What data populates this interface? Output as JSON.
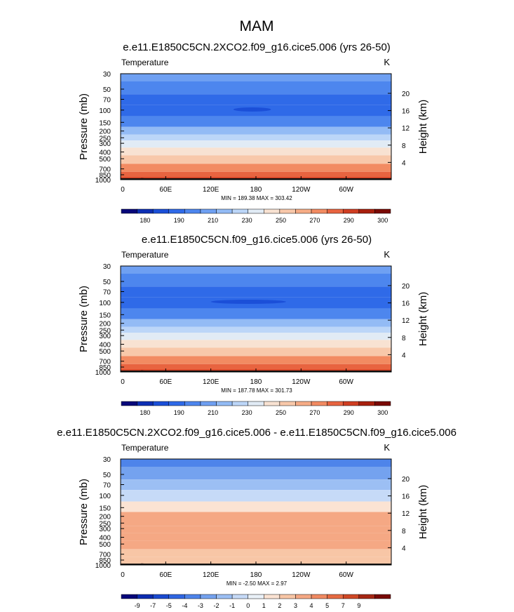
{
  "figure": {
    "title": "MAM"
  },
  "colors": {
    "temperature_palette": [
      "#08087a",
      "#0d2fb4",
      "#1b4fd8",
      "#2f6ae8",
      "#4d86ee",
      "#6fa0f2",
      "#93bbf5",
      "#bcd6f8",
      "#e1ebf5",
      "#f8e2d2",
      "#f8c8aa",
      "#f6ac86",
      "#f28b62",
      "#e86440",
      "#d03e22",
      "#a8200e",
      "#7a0a04"
    ],
    "difference_palette": [
      "#06067a",
      "#0c2cb0",
      "#1a4ad0",
      "#2f66e2",
      "#4e84ea",
      "#74a2ef",
      "#9cbff4",
      "#c6daf7",
      "#eaf1f8",
      "#fbe3d3",
      "#f8c6a6",
      "#f5a884",
      "#f08a62",
      "#e66a42",
      "#cf4826",
      "#a62714",
      "#780a05"
    ]
  },
  "chart_data": [
    {
      "type": "heatmap",
      "title": "e.e11.E1850C5CN.2XCO2.f09_g16.cice5.006 (yrs 26-50)",
      "left_label": "Temperature",
      "right_label": "K",
      "ylabel": "Pressure (mb)",
      "ylabel_right": "Height (km)",
      "xticks": [
        "0",
        "60E",
        "120E",
        "180",
        "120W",
        "60W"
      ],
      "xtick_values": [
        0,
        60,
        120,
        180,
        240,
        300
      ],
      "xlim": [
        0,
        360
      ],
      "yticks": [
        "30",
        "50",
        "70",
        "100",
        "150",
        "200",
        "250",
        "300",
        "400",
        "500",
        "700",
        "850",
        "1000"
      ],
      "ytick_values": [
        30,
        50,
        70,
        100,
        150,
        200,
        250,
        300,
        400,
        500,
        700,
        850,
        1000
      ],
      "ylim": [
        1000,
        30
      ],
      "y_scale": "log",
      "height_ticks": [
        "20",
        "16",
        "12",
        "8",
        "4"
      ],
      "height_tick_values": [
        20,
        16,
        12,
        8,
        4
      ],
      "stats": "MIN = 189.38  MAX = 303.42",
      "min": 189.38,
      "max": 303.42,
      "colorbar_labels": [
        "180",
        "190",
        "210",
        "230",
        "250",
        "270",
        "290",
        "300"
      ],
      "colorbar_levels": [
        175,
        180,
        185,
        190,
        200,
        210,
        220,
        230,
        240,
        250,
        260,
        270,
        280,
        290,
        295,
        300
      ],
      "profile_pressure": [
        30,
        50,
        70,
        100,
        150,
        200,
        250,
        300,
        400,
        500,
        700,
        850,
        1000
      ],
      "profile_color_index": [
        5,
        4,
        3,
        3,
        4,
        6,
        7,
        8,
        9,
        10,
        12,
        13,
        14
      ],
      "min_blob": {
        "lon_start": 150,
        "lon_end": 200,
        "pressure": 98
      },
      "topography": [
        {
          "lon": 5,
          "p": 1000
        },
        {
          "lon": 18,
          "p": 985
        },
        {
          "lon": 28,
          "p": 950
        },
        {
          "lon": 35,
          "p": 960
        },
        {
          "lon": 42,
          "p": 1000
        }
      ]
    },
    {
      "type": "heatmap",
      "title": "e.e11.E1850C5CN.f09_g16.cice5.006 (yrs 26-50)",
      "left_label": "Temperature",
      "right_label": "K",
      "ylabel": "Pressure (mb)",
      "ylabel_right": "Height (km)",
      "xticks": [
        "0",
        "60E",
        "120E",
        "180",
        "120W",
        "60W"
      ],
      "xtick_values": [
        0,
        60,
        120,
        180,
        240,
        300
      ],
      "xlim": [
        0,
        360
      ],
      "yticks": [
        "30",
        "50",
        "70",
        "100",
        "150",
        "200",
        "250",
        "300",
        "400",
        "500",
        "700",
        "850",
        "1000"
      ],
      "ytick_values": [
        30,
        50,
        70,
        100,
        150,
        200,
        250,
        300,
        400,
        500,
        700,
        850,
        1000
      ],
      "ylim": [
        1000,
        30
      ],
      "y_scale": "log",
      "height_ticks": [
        "20",
        "16",
        "12",
        "8",
        "4"
      ],
      "height_tick_values": [
        20,
        16,
        12,
        8,
        4
      ],
      "stats": "MIN = 187.78  MAX = 301.73",
      "min": 187.78,
      "max": 301.73,
      "colorbar_labels": [
        "180",
        "190",
        "210",
        "230",
        "250",
        "270",
        "290",
        "300"
      ],
      "colorbar_levels": [
        175,
        180,
        185,
        190,
        200,
        210,
        220,
        230,
        240,
        250,
        260,
        270,
        280,
        290,
        295,
        300
      ],
      "profile_pressure": [
        30,
        50,
        70,
        100,
        150,
        200,
        250,
        300,
        400,
        500,
        700,
        850,
        1000
      ],
      "profile_color_index": [
        5,
        4,
        3,
        3,
        4,
        6,
        7,
        8,
        9,
        10,
        12,
        13,
        14
      ],
      "min_blob": {
        "lon_start": 120,
        "lon_end": 220,
        "pressure": 98
      },
      "topography": [
        {
          "lon": 5,
          "p": 1000
        },
        {
          "lon": 18,
          "p": 985
        },
        {
          "lon": 28,
          "p": 950
        },
        {
          "lon": 35,
          "p": 960
        },
        {
          "lon": 42,
          "p": 1000
        }
      ]
    },
    {
      "type": "heatmap",
      "title": "e.e11.E1850C5CN.2XCO2.f09_g16.cice5.006 - e.e11.E1850C5CN.f09_g16.cice5.006",
      "left_label": "Temperature",
      "right_label": "K",
      "ylabel": "Pressure (mb)",
      "ylabel_right": "Height (km)",
      "xticks": [
        "0",
        "60E",
        "120E",
        "180",
        "120W",
        "60W"
      ],
      "xtick_values": [
        0,
        60,
        120,
        180,
        240,
        300
      ],
      "xlim": [
        0,
        360
      ],
      "yticks": [
        "30",
        "50",
        "70",
        "100",
        "150",
        "200",
        "250",
        "300",
        "400",
        "500",
        "700",
        "850",
        "1000"
      ],
      "ytick_values": [
        30,
        50,
        70,
        100,
        150,
        200,
        250,
        300,
        400,
        500,
        700,
        850,
        1000
      ],
      "ylim": [
        1000,
        30
      ],
      "y_scale": "log",
      "height_ticks": [
        "20",
        "16",
        "12",
        "8",
        "4"
      ],
      "height_tick_values": [
        20,
        16,
        12,
        8,
        4
      ],
      "stats": "MIN = -2.50  MAX =  2.97",
      "min": -2.5,
      "max": 2.97,
      "colorbar_labels": [
        "-9",
        "-7",
        "-5",
        "-4",
        "-3",
        "-2",
        "-1",
        "0",
        "1",
        "2",
        "3",
        "4",
        "5",
        "7",
        "9"
      ],
      "colorbar_levels": [
        -9,
        -7,
        -5,
        -4,
        -3,
        -2,
        -1,
        0,
        1,
        2,
        3,
        4,
        5,
        7,
        9
      ],
      "profile_pressure": [
        30,
        50,
        70,
        100,
        150,
        200,
        250,
        300,
        400,
        500,
        700,
        850,
        1000
      ],
      "profile_color_index": [
        4,
        5,
        6,
        7,
        9,
        11,
        11,
        11,
        11,
        11,
        10,
        10,
        10
      ],
      "min_blob": null,
      "topography": [
        {
          "lon": 5,
          "p": 1000
        },
        {
          "lon": 18,
          "p": 985
        },
        {
          "lon": 28,
          "p": 950
        },
        {
          "lon": 35,
          "p": 960
        },
        {
          "lon": 42,
          "p": 1000
        }
      ]
    }
  ]
}
